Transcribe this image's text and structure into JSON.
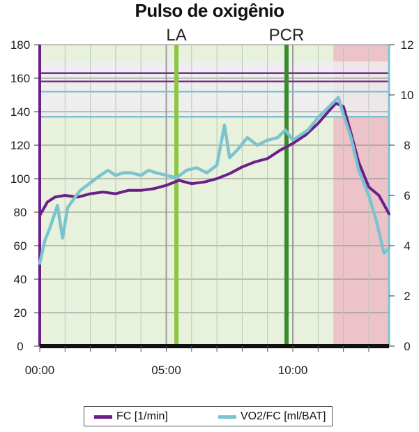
{
  "chart_data": {
    "type": "line",
    "title": "Pulso de oxigênio",
    "x_ticks": [
      "00:00",
      "05:00",
      "10:00"
    ],
    "x_range_minutes": [
      0,
      13.8
    ],
    "y_left": {
      "ticks": [
        0,
        20,
        40,
        60,
        80,
        100,
        120,
        140,
        160,
        180
      ],
      "range": [
        0,
        180
      ]
    },
    "y_right": {
      "ticks": [
        0,
        2,
        4,
        6,
        8,
        10,
        12
      ],
      "range": [
        0,
        12
      ]
    },
    "grid": true,
    "legend_placement": "bottom",
    "markers": [
      {
        "label": "LA",
        "x": 5.4,
        "color": "#8dc63f"
      },
      {
        "label": "PCR",
        "x": 9.75,
        "color": "#3a8a2e"
      }
    ],
    "zones": [
      {
        "from": 0,
        "to": 11.6,
        "color": "#e8f1dc"
      },
      {
        "from": 11.6,
        "to": 13.8,
        "color": "#ecc3c8"
      }
    ],
    "reference_lines_left_axis": [
      {
        "y": 163,
        "color": "#7b2d8e"
      },
      {
        "y": 158,
        "color": "#7b2d8e"
      },
      {
        "y": 152,
        "color": "#7bc4cf"
      },
      {
        "y": 137,
        "color": "#7bc4cf"
      }
    ],
    "series": [
      {
        "name": "FC [1/min]",
        "axis": "left",
        "color": "#6a1f8a",
        "x": [
          0,
          0.3,
          0.6,
          1,
          1.5,
          2,
          2.5,
          3,
          3.5,
          4,
          4.5,
          5,
          5.5,
          6,
          6.5,
          7,
          7.5,
          8,
          8.5,
          9,
          9.5,
          10,
          10.5,
          11,
          11.4,
          11.7,
          12,
          12.3,
          12.6,
          13,
          13.4,
          13.8
        ],
        "values": [
          78,
          86,
          89,
          90,
          89,
          91,
          92,
          91,
          93,
          93,
          94,
          96,
          99,
          97,
          98,
          100,
          103,
          107,
          110,
          112,
          117,
          121,
          126,
          133,
          140,
          145,
          143,
          127,
          110,
          95,
          90,
          79
        ]
      },
      {
        "name": "VO2/FC [ml/BAT]",
        "axis": "right",
        "color": "#7bc4cf",
        "x": [
          0,
          0.2,
          0.4,
          0.7,
          0.9,
          1.1,
          1.3,
          1.6,
          2,
          2.4,
          2.7,
          3,
          3.3,
          3.6,
          4,
          4.3,
          4.6,
          5,
          5.4,
          5.8,
          6.2,
          6.6,
          7,
          7.3,
          7.5,
          7.8,
          8.2,
          8.6,
          9,
          9.4,
          9.7,
          10,
          10.3,
          10.6,
          11,
          11.4,
          11.8,
          12,
          12.3,
          12.6,
          13,
          13.3,
          13.6,
          13.8
        ],
        "values": [
          3.3,
          4.2,
          4.7,
          5.6,
          4.3,
          5.5,
          5.8,
          6.2,
          6.5,
          6.8,
          7.0,
          6.8,
          6.9,
          6.9,
          6.8,
          7.0,
          6.9,
          6.8,
          6.7,
          7.0,
          7.1,
          6.9,
          7.2,
          8.8,
          7.5,
          7.8,
          8.3,
          8.0,
          8.2,
          8.3,
          8.6,
          8.2,
          8.4,
          8.6,
          9.1,
          9.5,
          9.9,
          9.2,
          8.3,
          7.0,
          6.0,
          5.0,
          3.7,
          3.9
        ]
      }
    ]
  }
}
